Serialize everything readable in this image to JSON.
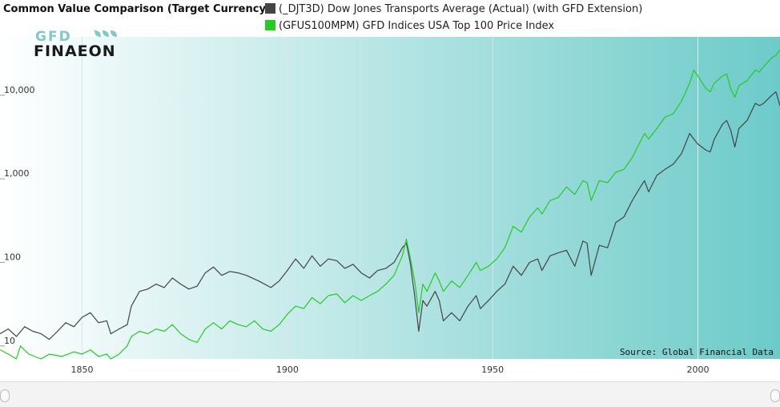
{
  "title": "Common Value Comparison (Target Currency)",
  "logo": {
    "line1": "GFD",
    "line2": "FINAEON"
  },
  "source": "Source: Global Financial Data",
  "colors": {
    "series1": "#444444",
    "series2": "#22cc22",
    "bg_left": "#ffffff",
    "bg_right": "#6ccbc9"
  },
  "icons": {
    "logo": "gfd-finaeon-logo",
    "nav_left": "range-handle-left",
    "nav_right": "range-handle-right"
  },
  "navigator": {
    "ticks": [
      "1850",
      "1900",
      "1950",
      "2000"
    ]
  },
  "chart_data": {
    "type": "line",
    "title": "Common Value Comparison (Target Currency)",
    "y_scale": "log",
    "ylim": [
      7,
      50000
    ],
    "xlim": [
      1830,
      2020
    ],
    "x_ticks": [
      1850,
      1900,
      1950,
      2000
    ],
    "x_tick_labels": [
      "1850",
      "1900",
      "1950",
      "2000"
    ],
    "y_ticks": [
      10,
      100,
      1000,
      10000
    ],
    "y_tick_labels": [
      "10",
      "100",
      "1,000",
      "10,000"
    ],
    "grid": "vertical",
    "legend": "top",
    "series": [
      {
        "name": "(_DJT3D) Dow Jones Transports Average (Actual) (with GFD Extension)",
        "color": "#444444",
        "points": [
          [
            1830,
            14
          ],
          [
            1832,
            16
          ],
          [
            1834,
            13
          ],
          [
            1836,
            17
          ],
          [
            1838,
            15
          ],
          [
            1840,
            14
          ],
          [
            1842,
            12
          ],
          [
            1844,
            15
          ],
          [
            1846,
            19
          ],
          [
            1848,
            17
          ],
          [
            1850,
            22
          ],
          [
            1852,
            25
          ],
          [
            1854,
            19
          ],
          [
            1856,
            20
          ],
          [
            1857,
            14
          ],
          [
            1859,
            16
          ],
          [
            1861,
            18
          ],
          [
            1862,
            30
          ],
          [
            1864,
            45
          ],
          [
            1866,
            48
          ],
          [
            1868,
            55
          ],
          [
            1870,
            50
          ],
          [
            1872,
            65
          ],
          [
            1874,
            55
          ],
          [
            1876,
            48
          ],
          [
            1878,
            52
          ],
          [
            1880,
            75
          ],
          [
            1882,
            88
          ],
          [
            1884,
            70
          ],
          [
            1886,
            78
          ],
          [
            1888,
            75
          ],
          [
            1890,
            70
          ],
          [
            1893,
            60
          ],
          [
            1896,
            50
          ],
          [
            1898,
            60
          ],
          [
            1900,
            80
          ],
          [
            1902,
            110
          ],
          [
            1904,
            85
          ],
          [
            1906,
            120
          ],
          [
            1908,
            90
          ],
          [
            1910,
            110
          ],
          [
            1912,
            105
          ],
          [
            1914,
            85
          ],
          [
            1916,
            95
          ],
          [
            1918,
            75
          ],
          [
            1920,
            65
          ],
          [
            1922,
            80
          ],
          [
            1924,
            85
          ],
          [
            1926,
            100
          ],
          [
            1928,
            150
          ],
          [
            1929,
            170
          ],
          [
            1930,
            95
          ],
          [
            1931,
            40
          ],
          [
            1932,
            15
          ],
          [
            1933,
            35
          ],
          [
            1934,
            30
          ],
          [
            1936,
            45
          ],
          [
            1937,
            35
          ],
          [
            1938,
            20
          ],
          [
            1940,
            25
          ],
          [
            1942,
            20
          ],
          [
            1944,
            30
          ],
          [
            1946,
            40
          ],
          [
            1947,
            28
          ],
          [
            1949,
            35
          ],
          [
            1951,
            45
          ],
          [
            1953,
            55
          ],
          [
            1955,
            90
          ],
          [
            1957,
            70
          ],
          [
            1959,
            100
          ],
          [
            1961,
            110
          ],
          [
            1962,
            80
          ],
          [
            1964,
            120
          ],
          [
            1966,
            130
          ],
          [
            1968,
            140
          ],
          [
            1970,
            90
          ],
          [
            1972,
            180
          ],
          [
            1973,
            170
          ],
          [
            1974,
            70
          ],
          [
            1976,
            160
          ],
          [
            1978,
            150
          ],
          [
            1980,
            300
          ],
          [
            1982,
            350
          ],
          [
            1984,
            550
          ],
          [
            1986,
            800
          ],
          [
            1987,
            950
          ],
          [
            1988,
            700
          ],
          [
            1990,
            1100
          ],
          [
            1992,
            1300
          ],
          [
            1994,
            1500
          ],
          [
            1996,
            2000
          ],
          [
            1998,
            3500
          ],
          [
            1999,
            3000
          ],
          [
            2000,
            2600
          ],
          [
            2002,
            2200
          ],
          [
            2003,
            2100
          ],
          [
            2004,
            3000
          ],
          [
            2006,
            4500
          ],
          [
            2007,
            5000
          ],
          [
            2008,
            3800
          ],
          [
            2009,
            2400
          ],
          [
            2010,
            4000
          ],
          [
            2012,
            5000
          ],
          [
            2014,
            8000
          ],
          [
            2015,
            7500
          ],
          [
            2016,
            8000
          ],
          [
            2018,
            10000
          ],
          [
            2019,
            11000
          ],
          [
            2020,
            7500
          ]
        ]
      },
      {
        "name": "(GFUS100MPM) GFD Indices USA Top 100 Price Index",
        "color": "#22cc22",
        "points": [
          [
            1830,
            9
          ],
          [
            1832,
            8
          ],
          [
            1834,
            7
          ],
          [
            1835,
            10
          ],
          [
            1837,
            8
          ],
          [
            1840,
            7
          ],
          [
            1842,
            8
          ],
          [
            1845,
            7.5
          ],
          [
            1848,
            8.5
          ],
          [
            1850,
            8
          ],
          [
            1852,
            9
          ],
          [
            1854,
            7.5
          ],
          [
            1856,
            8
          ],
          [
            1857,
            7
          ],
          [
            1859,
            8
          ],
          [
            1861,
            10
          ],
          [
            1862,
            13
          ],
          [
            1864,
            15
          ],
          [
            1866,
            14
          ],
          [
            1868,
            16
          ],
          [
            1870,
            15
          ],
          [
            1872,
            18
          ],
          [
            1874,
            14
          ],
          [
            1876,
            12
          ],
          [
            1878,
            11
          ],
          [
            1880,
            16
          ],
          [
            1882,
            19
          ],
          [
            1884,
            16
          ],
          [
            1886,
            20
          ],
          [
            1888,
            18
          ],
          [
            1890,
            17
          ],
          [
            1892,
            20
          ],
          [
            1894,
            16
          ],
          [
            1896,
            15
          ],
          [
            1898,
            18
          ],
          [
            1900,
            24
          ],
          [
            1902,
            30
          ],
          [
            1904,
            28
          ],
          [
            1906,
            38
          ],
          [
            1908,
            32
          ],
          [
            1910,
            40
          ],
          [
            1912,
            42
          ],
          [
            1914,
            33
          ],
          [
            1916,
            40
          ],
          [
            1918,
            35
          ],
          [
            1920,
            40
          ],
          [
            1922,
            45
          ],
          [
            1924,
            55
          ],
          [
            1926,
            70
          ],
          [
            1928,
            120
          ],
          [
            1929,
            190
          ],
          [
            1930,
            110
          ],
          [
            1931,
            60
          ],
          [
            1932,
            25
          ],
          [
            1933,
            55
          ],
          [
            1934,
            45
          ],
          [
            1936,
            75
          ],
          [
            1937,
            60
          ],
          [
            1938,
            45
          ],
          [
            1940,
            60
          ],
          [
            1942,
            50
          ],
          [
            1944,
            70
          ],
          [
            1946,
            100
          ],
          [
            1947,
            80
          ],
          [
            1949,
            90
          ],
          [
            1951,
            110
          ],
          [
            1953,
            150
          ],
          [
            1955,
            270
          ],
          [
            1957,
            230
          ],
          [
            1959,
            350
          ],
          [
            1961,
            450
          ],
          [
            1962,
            380
          ],
          [
            1964,
            550
          ],
          [
            1966,
            600
          ],
          [
            1968,
            800
          ],
          [
            1970,
            650
          ],
          [
            1972,
            950
          ],
          [
            1973,
            900
          ],
          [
            1974,
            550
          ],
          [
            1976,
            950
          ],
          [
            1978,
            900
          ],
          [
            1980,
            1200
          ],
          [
            1982,
            1300
          ],
          [
            1984,
            1800
          ],
          [
            1986,
            2800
          ],
          [
            1987,
            3500
          ],
          [
            1988,
            3000
          ],
          [
            1990,
            4000
          ],
          [
            1992,
            5500
          ],
          [
            1994,
            6000
          ],
          [
            1996,
            8500
          ],
          [
            1998,
            14000
          ],
          [
            1999,
            20000
          ],
          [
            2000,
            17000
          ],
          [
            2002,
            12000
          ],
          [
            2003,
            11000
          ],
          [
            2004,
            14000
          ],
          [
            2006,
            17000
          ],
          [
            2007,
            18000
          ],
          [
            2008,
            12000
          ],
          [
            2009,
            9500
          ],
          [
            2010,
            13000
          ],
          [
            2012,
            15000
          ],
          [
            2014,
            20000
          ],
          [
            2015,
            19000
          ],
          [
            2016,
            22000
          ],
          [
            2018,
            28000
          ],
          [
            2019,
            30000
          ],
          [
            2020,
            35000
          ]
        ]
      }
    ]
  }
}
